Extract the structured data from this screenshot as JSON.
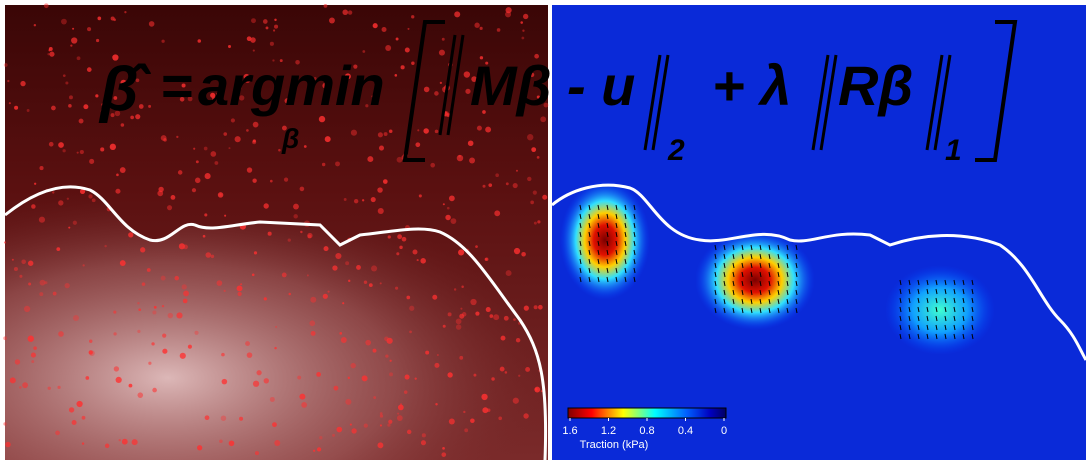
{
  "equation": {
    "beta_hat": "β̂",
    "equals": "=",
    "argmin": "argmin",
    "argmin_sub": "β",
    "fidelity": "Mβ - u",
    "fidelity_sub": "2",
    "plus_lambda": "+ λ",
    "penalty": "Rβ",
    "penalty_sub": "1"
  },
  "colorbar": {
    "label": "Traction (kPa)",
    "lim": [
      1.6,
      0
    ],
    "ticks": [
      1.6,
      1.2,
      0.8,
      0.4,
      0
    ]
  }
}
